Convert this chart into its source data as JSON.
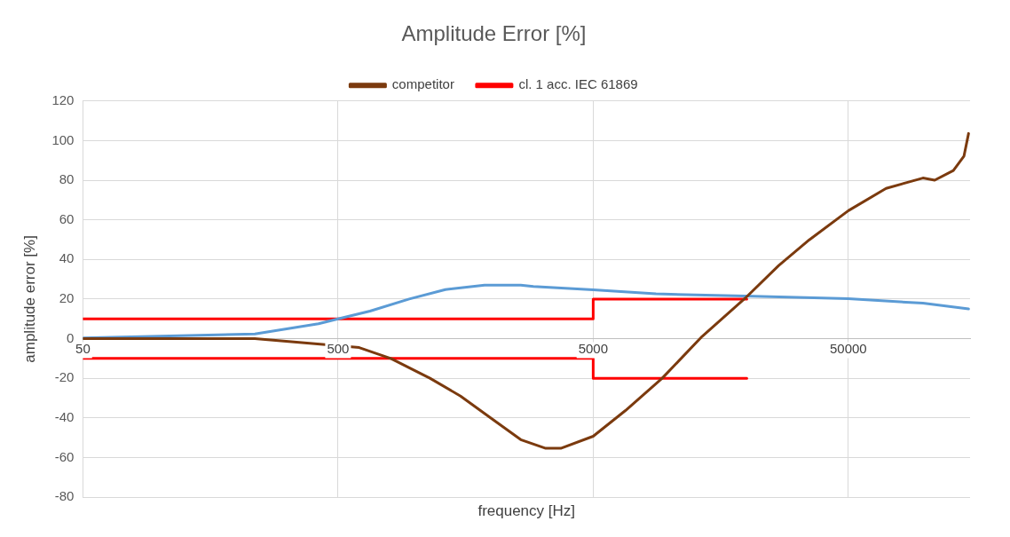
{
  "chart_data": {
    "type": "line",
    "title": "Amplitude Error [%]",
    "xlabel": "frequency [Hz]",
    "ylabel": "amplitude error [%]",
    "log": "x",
    "xlim": [
      50,
      150000
    ],
    "xticks": [
      50,
      500,
      5000,
      50000
    ],
    "ylim": [
      -80,
      120
    ],
    "yticks": [
      -80,
      -60,
      -40,
      -20,
      0,
      20,
      40,
      60,
      80,
      100,
      120
    ],
    "grid": true,
    "legend": "top",
    "marker": "none",
    "series": [
      {
        "name": "competitor",
        "color": "#7b3a0e",
        "x": [
          50,
          236,
          605,
          805,
          1146,
          1510,
          1980,
          2600,
          3258,
          3732,
          5000,
          6690,
          9320,
          13360,
          19625,
          26680,
          35150,
          50000,
          70300,
          98000,
          109000,
          129000,
          142000,
          148000
        ],
        "values": [
          0,
          0,
          -4.5,
          -10,
          -20,
          -29,
          -40,
          -51,
          -55.4,
          -55.4,
          -49.3,
          -36.3,
          -20,
          1.1,
          20.2,
          36.9,
          49.9,
          64.6,
          75.9,
          81.1,
          80,
          84.9,
          92.2,
          103.6
        ]
      },
      {
        "color": "#5b9bd5",
        "x": [
          50,
          236,
          419,
          500,
          667,
          950,
          1317,
          1876,
          2600,
          2915,
          5000,
          8815,
          19625,
          50000,
          98000,
          148000
        ],
        "values": [
          0.3,
          2.4,
          7.5,
          10,
          13.9,
          20,
          24.8,
          27,
          27,
          26.3,
          24.7,
          22.6,
          21.5,
          20.2,
          17.9,
          15
        ]
      },
      {
        "name": "cl. 1 acc. IEC 61869",
        "color": "#ff0000",
        "x": [
          50,
          5000,
          5000,
          20000
        ],
        "values": [
          10,
          10,
          20,
          20
        ]
      },
      {
        "color": "#ff0000",
        "x": [
          50,
          5000,
          5000,
          20000
        ],
        "values": [
          -10,
          -10,
          -20,
          -20
        ]
      }
    ]
  }
}
